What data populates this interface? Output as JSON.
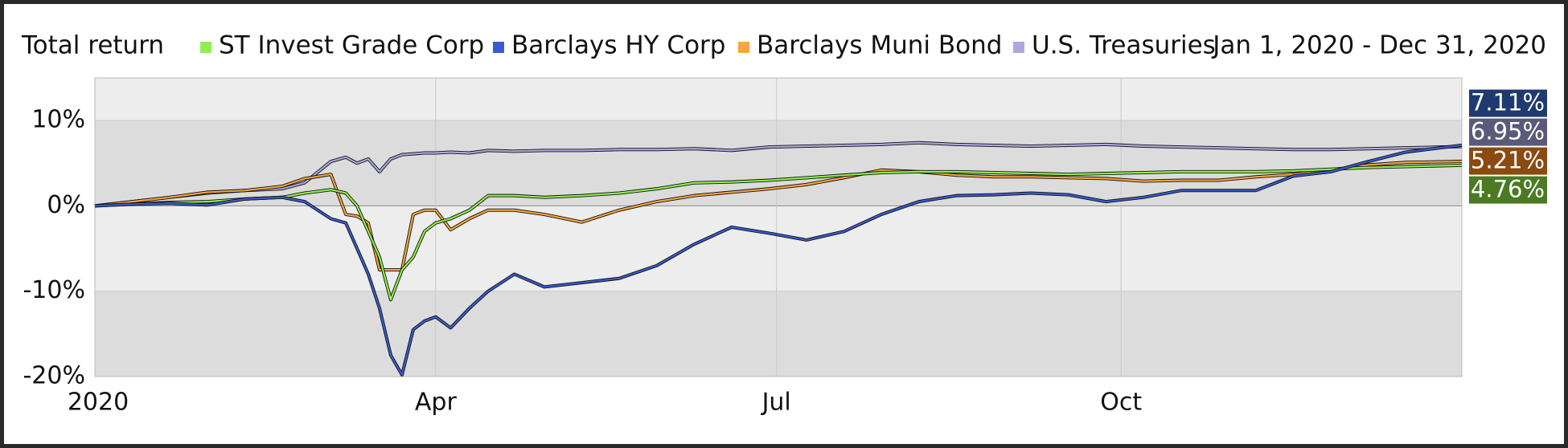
{
  "chart_data": {
    "type": "line",
    "title": "Total return",
    "subtitle": "Jan 1, 2020 - Dec 31, 2020",
    "x": [
      0,
      10,
      20,
      30,
      40,
      50,
      56,
      63,
      67,
      70,
      73,
      76,
      79,
      82,
      85,
      88,
      91,
      95,
      100,
      105,
      112,
      120,
      130,
      140,
      150,
      160,
      170,
      180,
      190,
      200,
      210,
      220,
      230,
      240,
      250,
      260,
      270,
      280,
      290,
      300,
      310,
      320,
      330,
      340,
      350,
      365
    ],
    "xlim": [
      0,
      365
    ],
    "xticks": [
      {
        "value": 0,
        "label": "2020"
      },
      {
        "value": 91,
        "label": "Apr"
      },
      {
        "value": 182,
        "label": "Jul"
      },
      {
        "value": 274,
        "label": "Oct"
      }
    ],
    "ylim": [
      -20,
      15
    ],
    "yticks": [
      {
        "value": -20,
        "label": "-20%"
      },
      {
        "value": -10,
        "label": "-10%"
      },
      {
        "value": 0,
        "label": "0%"
      },
      {
        "value": 10,
        "label": "10%"
      }
    ],
    "grid": true,
    "series": [
      {
        "name": "ST Invest Grade Corp",
        "color": "#8ef04c",
        "label_color": "#4a7a22",
        "values": [
          0,
          0.2,
          0.4,
          0.5,
          0.8,
          1.0,
          1.5,
          1.9,
          1.5,
          0,
          -3,
          -6,
          -11,
          -7.5,
          -6,
          -3,
          -2,
          -1.5,
          -0.5,
          1.2,
          1.2,
          1.0,
          1.2,
          1.5,
          2.0,
          2.7,
          2.8,
          3.0,
          3.3,
          3.6,
          3.9,
          4.0,
          4.0,
          3.9,
          3.8,
          3.7,
          3.8,
          3.9,
          4.0,
          4.0,
          4.0,
          4.1,
          4.3,
          4.5,
          4.6,
          4.76
        ],
        "value_labels": [
          null,
          null,
          null,
          null,
          null,
          null,
          null,
          null,
          null,
          null,
          null,
          null,
          null,
          null,
          null,
          null,
          null,
          null,
          null,
          null,
          null,
          null,
          null,
          null,
          null,
          null,
          null,
          null,
          null,
          null,
          null,
          null,
          null,
          null,
          null,
          null,
          null,
          null,
          null,
          null,
          null,
          null,
          null,
          null,
          null,
          "4.76%"
        ]
      },
      {
        "name": "Barclays HY Corp",
        "color": "#3a5bd0",
        "label_color": "#1f3a6e",
        "values": [
          0,
          0.2,
          0.3,
          0.1,
          0.8,
          1.0,
          0.5,
          -1.5,
          -2,
          -5,
          -8,
          -12,
          -17.5,
          -19.8,
          -14.5,
          -13.5,
          -13,
          -14.3,
          -12,
          -10,
          -8,
          -9.5,
          -9,
          -8.5,
          -7,
          -4.5,
          -2.5,
          -3.2,
          -4,
          -3,
          -1,
          0.5,
          1.2,
          1.3,
          1.5,
          1.3,
          0.5,
          1,
          1.8,
          1.8,
          1.8,
          3.5,
          4.0,
          5.2,
          6.3,
          7.11
        ],
        "value_labels": [
          null,
          null,
          null,
          null,
          null,
          null,
          null,
          null,
          null,
          null,
          null,
          null,
          null,
          null,
          null,
          null,
          null,
          null,
          null,
          null,
          null,
          null,
          null,
          null,
          null,
          null,
          null,
          null,
          null,
          null,
          null,
          null,
          null,
          null,
          null,
          null,
          null,
          null,
          null,
          null,
          null,
          null,
          null,
          null,
          null,
          "7.11%"
        ]
      },
      {
        "name": "Barclays Muni Bond",
        "color": "#f7a540",
        "label_color": "#8a4a10",
        "values": [
          0,
          0.5,
          1.0,
          1.6,
          1.8,
          2.3,
          3.2,
          3.7,
          -1,
          -1.2,
          -2,
          -7.5,
          -7.5,
          -7.5,
          -1,
          -0.5,
          -0.5,
          -2.8,
          -1.5,
          -0.5,
          -0.5,
          -1.0,
          -1.9,
          -0.5,
          0.5,
          1.2,
          1.6,
          2.0,
          2.5,
          3.3,
          4.2,
          4.0,
          3.6,
          3.4,
          3.4,
          3.3,
          3.2,
          2.9,
          3.0,
          3.0,
          3.4,
          3.7,
          4.2,
          4.8,
          5.1,
          5.21
        ],
        "value_labels": [
          null,
          null,
          null,
          null,
          null,
          null,
          null,
          null,
          null,
          null,
          null,
          null,
          null,
          null,
          null,
          null,
          null,
          null,
          null,
          null,
          null,
          null,
          null,
          null,
          null,
          null,
          null,
          null,
          null,
          null,
          null,
          null,
          null,
          null,
          null,
          null,
          null,
          null,
          null,
          null,
          null,
          null,
          null,
          null,
          null,
          "5.21%"
        ]
      },
      {
        "name": "U.S. Treasuries",
        "color": "#aaa8e0",
        "label_color": "#5b5a7a",
        "values": [
          0,
          0.5,
          1.0,
          1.5,
          1.8,
          2.0,
          2.7,
          5.2,
          5.7,
          5.0,
          5.5,
          4.0,
          5.5,
          6.0,
          6.1,
          6.2,
          6.2,
          6.3,
          6.2,
          6.5,
          6.4,
          6.5,
          6.5,
          6.6,
          6.6,
          6.7,
          6.5,
          6.9,
          7.0,
          7.1,
          7.2,
          7.4,
          7.2,
          7.1,
          7.0,
          7.1,
          7.2,
          7.0,
          6.9,
          6.8,
          6.7,
          6.6,
          6.6,
          6.7,
          6.8,
          6.95
        ],
        "value_labels": [
          null,
          null,
          null,
          null,
          null,
          null,
          null,
          null,
          null,
          null,
          null,
          null,
          null,
          null,
          null,
          null,
          null,
          null,
          null,
          null,
          null,
          null,
          null,
          null,
          null,
          null,
          null,
          null,
          null,
          null,
          null,
          null,
          null,
          null,
          null,
          null,
          null,
          null,
          null,
          null,
          null,
          null,
          null,
          null,
          null,
          "6.95%"
        ]
      }
    ]
  }
}
